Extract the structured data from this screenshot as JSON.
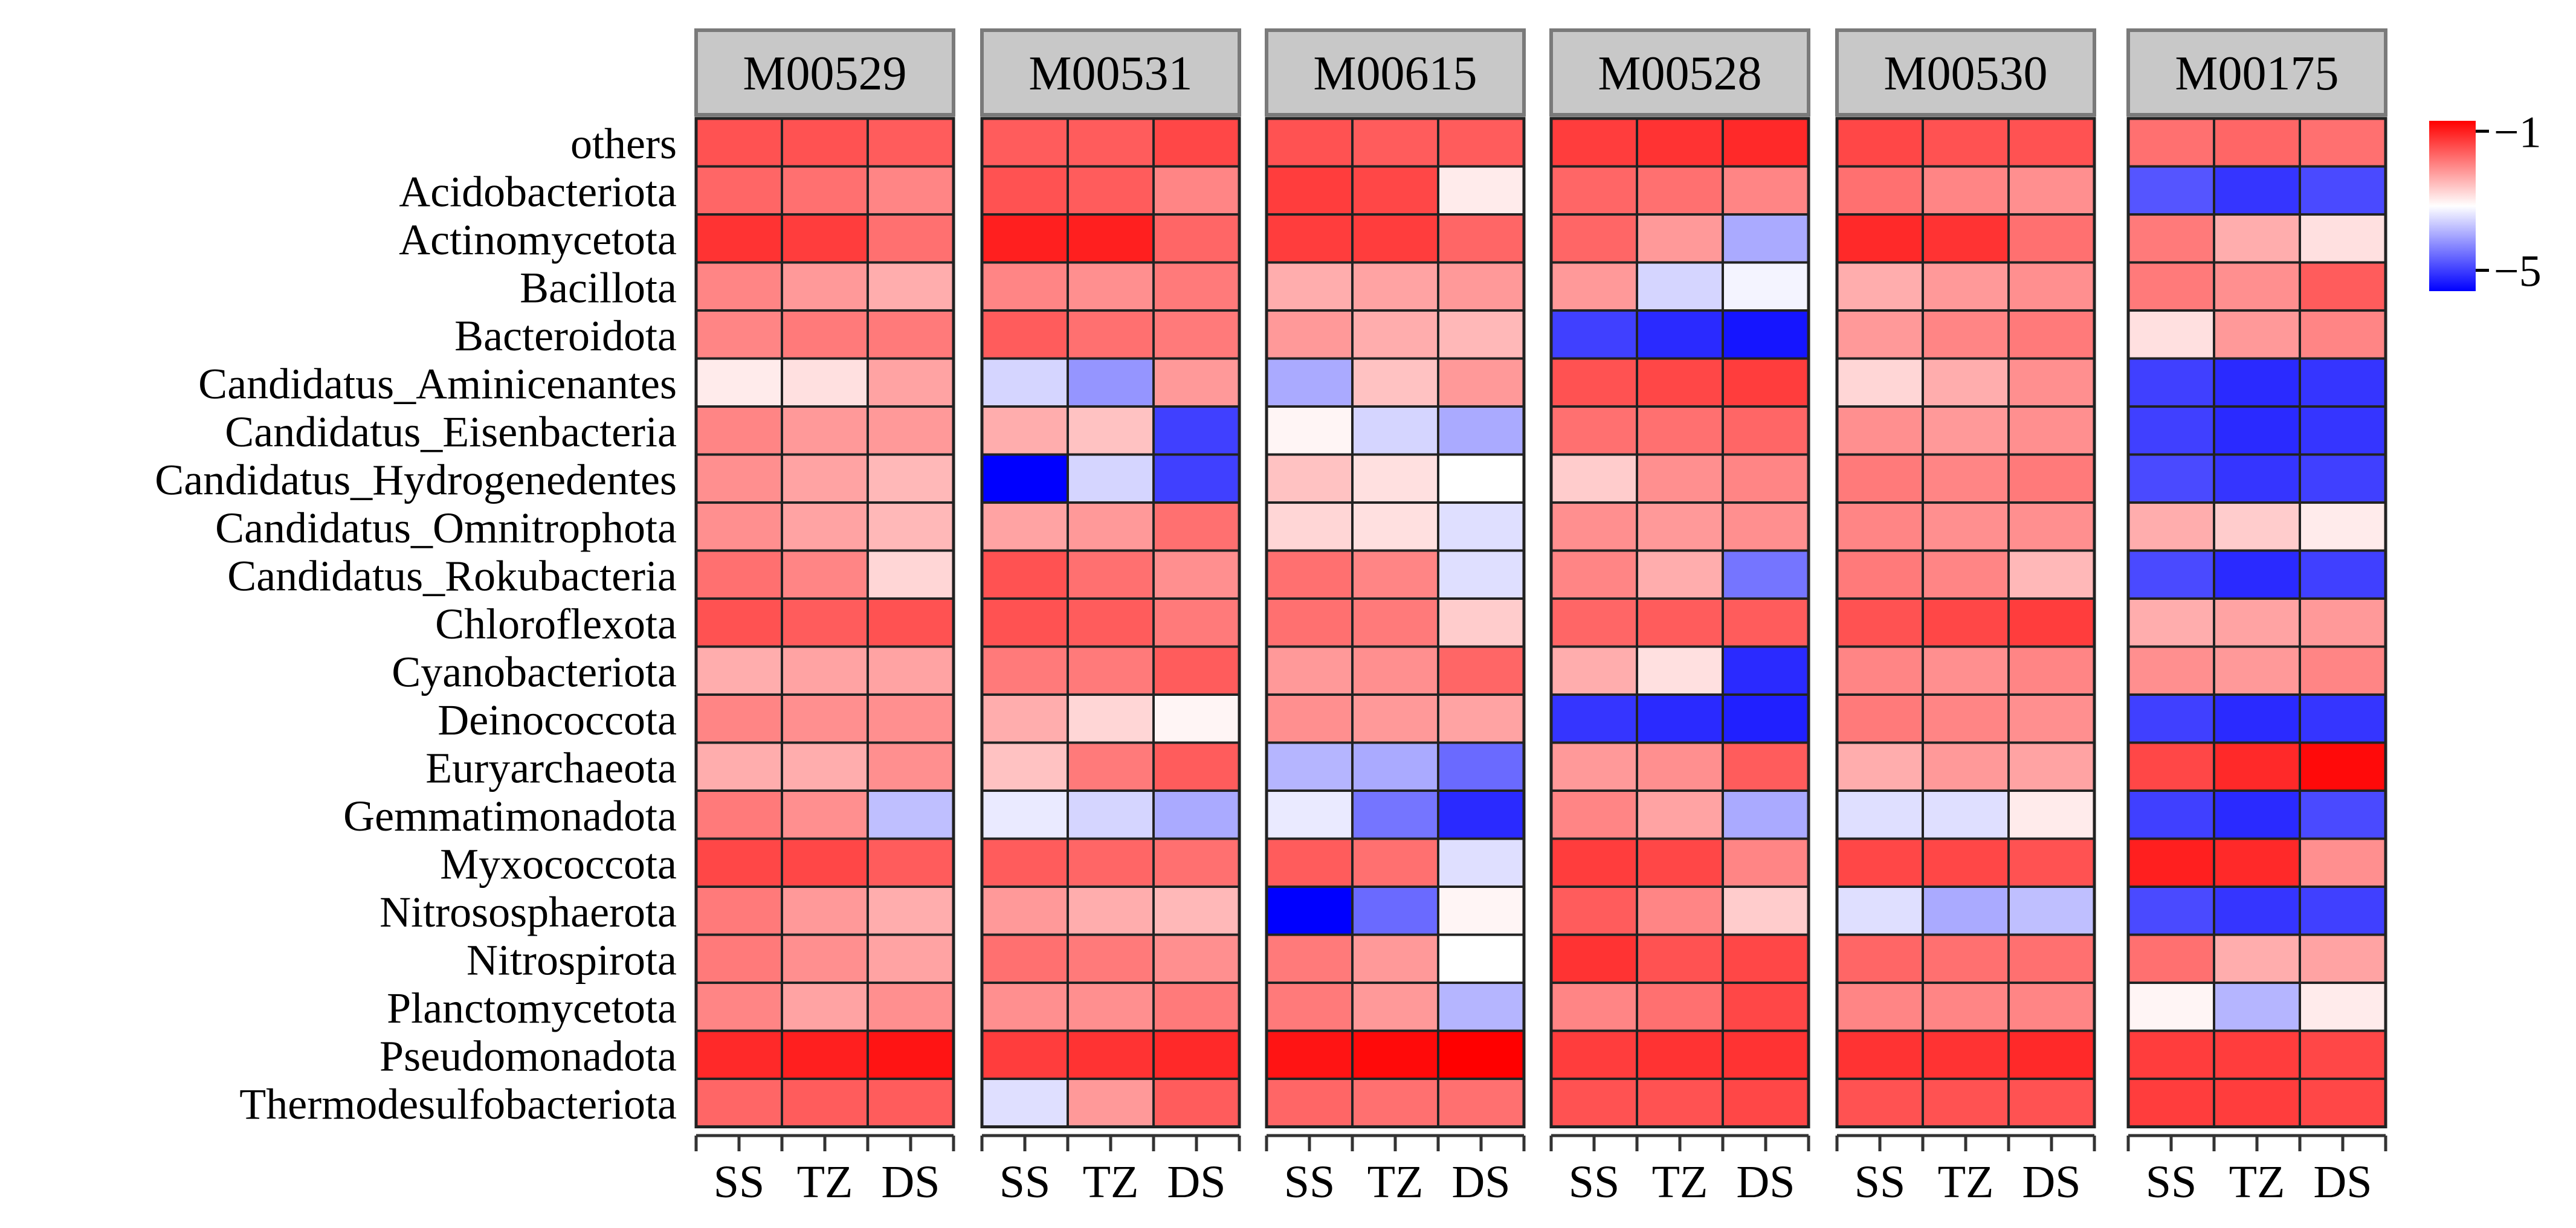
{
  "chart_data": {
    "type": "heatmap",
    "title": "",
    "xlabel": "",
    "ylabel": "",
    "color_scale": {
      "low_color": "#0000ff",
      "mid_color": "#ffffff",
      "high_color": "#ff0000",
      "low": -5.6,
      "mid": -3.2,
      "high": -0.7,
      "ticks": [
        -1,
        -5
      ],
      "tick_labels": [
        "−1",
        "−5"
      ]
    },
    "columns": [
      "SS",
      "TZ",
      "DS"
    ],
    "rows": [
      "others",
      "Acidobacteriota",
      "Actinomycetota",
      "Bacillota",
      "Bacteroidota",
      "Candidatus_Aminicenantes",
      "Candidatus_Eisenbacteria",
      "Candidatus_Hydrogenedentes",
      "Candidatus_Omnitrophota",
      "Candidatus_Rokubacteria",
      "Chloroflexota",
      "Cyanobacteriota",
      "Deinococcota",
      "Euryarchaeota",
      "Gemmatimonadota",
      "Myxococcota",
      "Nitrososphaerota",
      "Nitrospirota",
      "Planctomycetota",
      "Pseudomonadota",
      "Thermodesulfobacteriota"
    ],
    "facets": [
      {
        "name": "M00529",
        "values": [
          [
            -1.5,
            -1.5,
            -1.6
          ],
          [
            -1.7,
            -1.8,
            -2.0
          ],
          [
            -1.2,
            -1.3,
            -1.8
          ],
          [
            -2.0,
            -2.2,
            -2.4
          ],
          [
            -2.0,
            -1.9,
            -1.9
          ],
          [
            -3.0,
            -2.9,
            -2.3
          ],
          [
            -2.0,
            -2.2,
            -2.2
          ],
          [
            -2.1,
            -2.3,
            -2.5
          ],
          [
            -2.1,
            -2.3,
            -2.5
          ],
          [
            -1.8,
            -2.0,
            -2.8
          ],
          [
            -1.5,
            -1.6,
            -1.5
          ],
          [
            -2.4,
            -2.3,
            -2.3
          ],
          [
            -2.0,
            -2.1,
            -2.1
          ],
          [
            -2.4,
            -2.4,
            -2.1
          ],
          [
            -1.9,
            -2.1,
            -3.8
          ],
          [
            -1.4,
            -1.4,
            -1.6
          ],
          [
            -1.9,
            -2.2,
            -2.4
          ],
          [
            -1.9,
            -2.1,
            -2.3
          ],
          [
            -2.0,
            -2.3,
            -2.1
          ],
          [
            -1.1,
            -1.0,
            -0.9
          ],
          [
            -1.7,
            -1.6,
            -1.6
          ]
        ]
      },
      {
        "name": "M00531",
        "values": [
          [
            -1.6,
            -1.6,
            -1.4
          ],
          [
            -1.5,
            -1.6,
            -2.0
          ],
          [
            -1.0,
            -1.0,
            -1.7
          ],
          [
            -2.0,
            -2.1,
            -1.9
          ],
          [
            -1.6,
            -1.8,
            -1.9
          ],
          [
            -3.6,
            -4.2,
            -2.2
          ],
          [
            -2.4,
            -2.6,
            -5.0
          ],
          [
            -5.6,
            -3.6,
            -5.0
          ],
          [
            -2.3,
            -2.2,
            -1.8
          ],
          [
            -1.5,
            -1.8,
            -2.1
          ],
          [
            -1.5,
            -1.6,
            -1.9
          ],
          [
            -1.9,
            -1.9,
            -1.6
          ],
          [
            -2.4,
            -2.8,
            -3.1
          ],
          [
            -2.6,
            -1.9,
            -1.6
          ],
          [
            -3.4,
            -3.6,
            -4.0
          ],
          [
            -1.6,
            -1.7,
            -1.8
          ],
          [
            -2.2,
            -2.4,
            -2.5
          ],
          [
            -1.8,
            -1.9,
            -2.1
          ],
          [
            -2.1,
            -2.1,
            -1.9
          ],
          [
            -1.3,
            -1.2,
            -1.1
          ],
          [
            -3.5,
            -2.2,
            -1.6
          ]
        ]
      },
      {
        "name": "M00615",
        "values": [
          [
            -1.5,
            -1.6,
            -1.6
          ],
          [
            -1.3,
            -1.4,
            -3.0
          ],
          [
            -1.3,
            -1.3,
            -1.7
          ],
          [
            -2.4,
            -2.3,
            -2.2
          ],
          [
            -2.2,
            -2.4,
            -2.5
          ],
          [
            -4.0,
            -2.6,
            -2.2
          ],
          [
            -3.1,
            -3.6,
            -4.0
          ],
          [
            -2.6,
            -2.9,
            -3.2
          ],
          [
            -2.8,
            -2.9,
            -3.5
          ],
          [
            -1.8,
            -2.0,
            -3.5
          ],
          [
            -1.8,
            -1.9,
            -2.7
          ],
          [
            -2.2,
            -2.1,
            -1.7
          ],
          [
            -2.1,
            -2.2,
            -2.3
          ],
          [
            -3.9,
            -4.0,
            -4.6
          ],
          [
            -3.4,
            -4.5,
            -5.2
          ],
          [
            -1.6,
            -1.8,
            -3.5
          ],
          [
            -5.6,
            -4.6,
            -3.1
          ],
          [
            -1.9,
            -2.2,
            -3.2
          ],
          [
            -1.9,
            -2.2,
            -3.9
          ],
          [
            -0.9,
            -0.8,
            -0.7
          ],
          [
            -1.7,
            -1.8,
            -1.8
          ]
        ]
      },
      {
        "name": "M00528",
        "values": [
          [
            -1.3,
            -1.2,
            -1.1
          ],
          [
            -1.7,
            -1.8,
            -2.0
          ],
          [
            -1.7,
            -2.2,
            -4.0
          ],
          [
            -2.2,
            -3.6,
            -3.3
          ],
          [
            -5.0,
            -5.2,
            -5.4
          ],
          [
            -1.5,
            -1.4,
            -1.3
          ],
          [
            -1.8,
            -1.8,
            -1.7
          ],
          [
            -2.7,
            -2.1,
            -2.0
          ],
          [
            -2.1,
            -2.2,
            -2.1
          ],
          [
            -2.0,
            -2.4,
            -4.5
          ],
          [
            -1.7,
            -1.6,
            -1.6
          ],
          [
            -2.4,
            -2.9,
            -5.2
          ],
          [
            -5.1,
            -5.2,
            -5.3
          ],
          [
            -2.2,
            -2.1,
            -1.6
          ],
          [
            -2.0,
            -2.3,
            -4.0
          ],
          [
            -1.3,
            -1.4,
            -2.0
          ],
          [
            -1.6,
            -2.0,
            -2.7
          ],
          [
            -1.2,
            -1.5,
            -1.4
          ],
          [
            -2.0,
            -1.8,
            -1.4
          ],
          [
            -1.3,
            -1.2,
            -1.2
          ],
          [
            -1.5,
            -1.5,
            -1.4
          ]
        ]
      },
      {
        "name": "M00530",
        "values": [
          [
            -1.4,
            -1.5,
            -1.5
          ],
          [
            -1.8,
            -2.0,
            -2.1
          ],
          [
            -1.1,
            -1.2,
            -1.8
          ],
          [
            -2.4,
            -2.2,
            -2.1
          ],
          [
            -2.2,
            -2.0,
            -1.9
          ],
          [
            -2.8,
            -2.4,
            -2.1
          ],
          [
            -2.1,
            -2.2,
            -2.1
          ],
          [
            -1.9,
            -2.0,
            -1.9
          ],
          [
            -2.0,
            -2.1,
            -2.1
          ],
          [
            -1.9,
            -2.0,
            -2.5
          ],
          [
            -1.5,
            -1.4,
            -1.3
          ],
          [
            -2.0,
            -2.1,
            -2.0
          ],
          [
            -1.9,
            -2.0,
            -2.1
          ],
          [
            -2.4,
            -2.2,
            -2.3
          ],
          [
            -3.5,
            -3.5,
            -3.0
          ],
          [
            -1.4,
            -1.4,
            -1.5
          ],
          [
            -3.5,
            -4.0,
            -3.8
          ],
          [
            -1.7,
            -1.8,
            -1.8
          ],
          [
            -2.0,
            -2.0,
            -2.0
          ],
          [
            -1.2,
            -1.2,
            -1.1
          ],
          [
            -1.5,
            -1.5,
            -1.5
          ]
        ]
      },
      {
        "name": "M00175",
        "values": [
          [
            -1.8,
            -1.7,
            -1.8
          ],
          [
            -4.8,
            -5.1,
            -4.9
          ],
          [
            -1.9,
            -2.4,
            -2.9
          ],
          [
            -1.9,
            -2.1,
            -1.6
          ],
          [
            -2.9,
            -2.2,
            -2.0
          ],
          [
            -5.0,
            -5.2,
            -5.1
          ],
          [
            -5.0,
            -5.2,
            -5.1
          ],
          [
            -4.9,
            -5.1,
            -5.0
          ],
          [
            -2.4,
            -2.7,
            -3.0
          ],
          [
            -4.9,
            -5.2,
            -5.0
          ],
          [
            -2.4,
            -2.3,
            -2.2
          ],
          [
            -2.1,
            -2.2,
            -2.0
          ],
          [
            -5.0,
            -5.2,
            -5.1
          ],
          [
            -1.4,
            -1.1,
            -0.8
          ],
          [
            -5.0,
            -5.2,
            -4.9
          ],
          [
            -1.0,
            -1.1,
            -2.1
          ],
          [
            -4.9,
            -5.1,
            -5.0
          ],
          [
            -1.8,
            -2.4,
            -2.3
          ],
          [
            -3.1,
            -3.9,
            -3.0
          ],
          [
            -1.3,
            -1.3,
            -1.4
          ],
          [
            -1.3,
            -1.3,
            -1.4
          ]
        ]
      }
    ]
  }
}
